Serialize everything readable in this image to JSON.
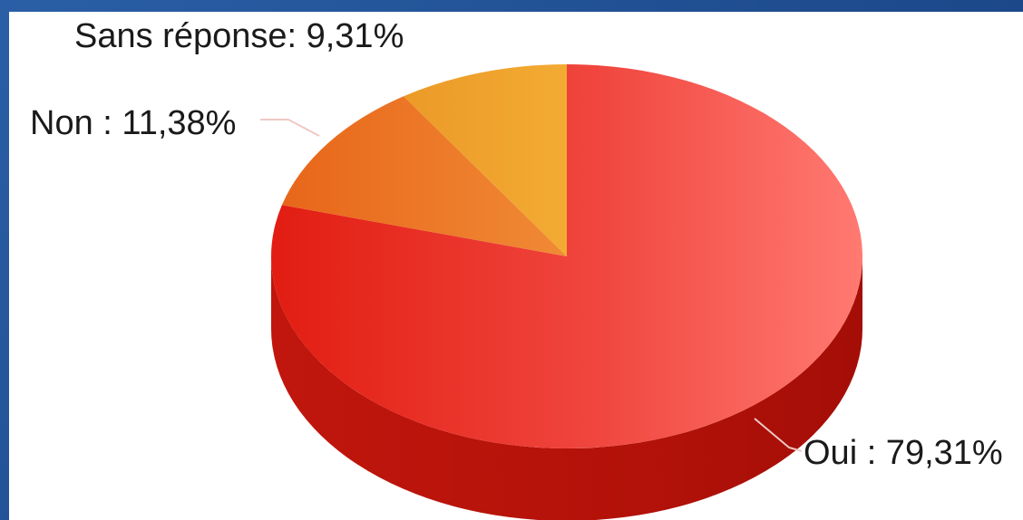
{
  "chart_data": {
    "type": "pie",
    "style": "3d",
    "slices": [
      {
        "label": "Oui",
        "value": 79.31,
        "display": "Oui : 79,31%",
        "color": "#e8352b",
        "side_color": "#b81410"
      },
      {
        "label": "Non",
        "value": 11.38,
        "display": "Non : 11,38%",
        "color": "#ea7a25",
        "side_color": "#c45a12"
      },
      {
        "label": "Sans réponse",
        "value": 9.31,
        "display": "Sans réponse: 9,31%",
        "color": "#f0a42c",
        "side_color": "#c8801a"
      }
    ]
  }
}
